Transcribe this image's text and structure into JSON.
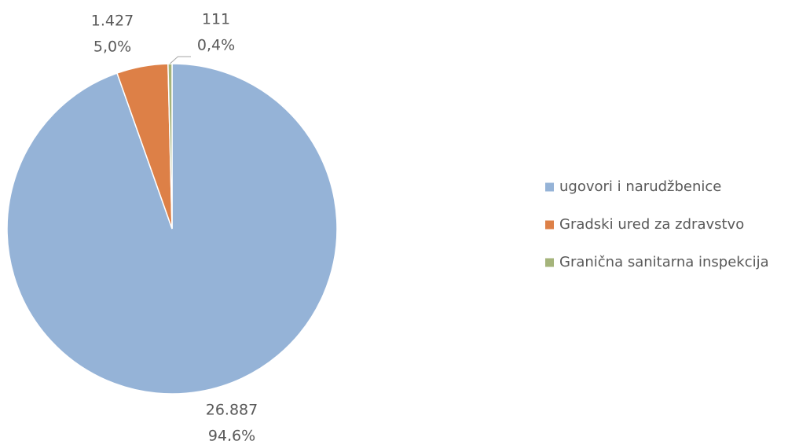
{
  "chart_data": {
    "type": "pie",
    "categories": [
      "ugovori i narudžbenice",
      "Gradski ured za zdravstvo",
      "Granična sanitarna inspekcija"
    ],
    "values": [
      26887,
      1427,
      111
    ],
    "value_labels": [
      "26.887",
      "1.427",
      "111"
    ],
    "percentages": [
      94.6,
      5.0,
      0.4
    ],
    "percentage_labels": [
      "94,6%",
      "5,0%",
      "0,4%"
    ],
    "colors": [
      "#95b3d7",
      "#dd8047",
      "#a5b47b"
    ],
    "legend": "right"
  }
}
